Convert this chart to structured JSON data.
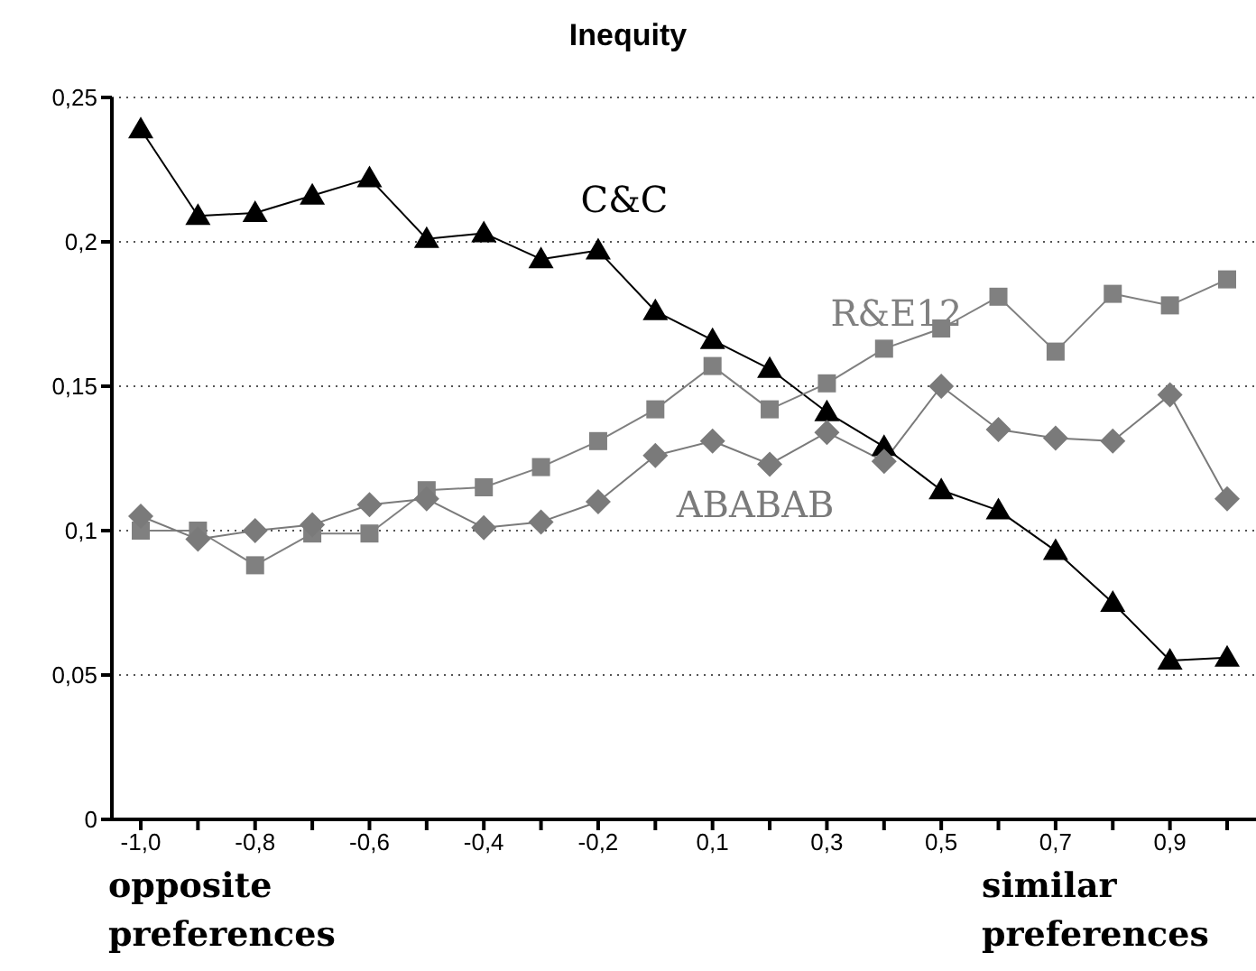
{
  "chart_data": {
    "type": "line",
    "title": "Inequity",
    "categories": [
      "-1,0",
      null,
      "-0,8",
      null,
      "-0,6",
      null,
      "-0,4",
      null,
      "-0,2",
      null,
      "0,1",
      null,
      "0,3",
      null,
      "0,5",
      null,
      "0,7",
      null,
      "0,9",
      null
    ],
    "series": [
      {
        "name": "C&C",
        "color": "#000000",
        "marker": "triangle",
        "values": [
          0.239,
          0.209,
          0.21,
          0.216,
          0.222,
          0.201,
          0.203,
          0.194,
          0.197,
          0.176,
          0.166,
          0.156,
          0.141,
          0.129,
          0.114,
          0.107,
          0.093,
          0.075,
          0.055,
          0.056
        ]
      },
      {
        "name": "R&E12",
        "color": "#808080",
        "marker": "square",
        "values": [
          0.1,
          0.1,
          0.088,
          0.099,
          0.099,
          0.114,
          0.115,
          0.122,
          0.131,
          0.142,
          0.157,
          0.142,
          0.151,
          0.163,
          0.17,
          0.181,
          0.162,
          0.182,
          0.178,
          0.187
        ]
      },
      {
        "name": "ABABAB",
        "color": "#7a7a7a",
        "marker": "diamond",
        "values": [
          0.105,
          0.097,
          0.1,
          0.102,
          0.109,
          0.111,
          0.101,
          0.103,
          0.11,
          0.126,
          0.131,
          0.123,
          0.134,
          0.124,
          0.15,
          0.135,
          0.132,
          0.131,
          0.147,
          0.111
        ]
      }
    ],
    "ylim": [
      0,
      0.25
    ],
    "yticks": [
      {
        "value": 0,
        "label": "0"
      },
      {
        "value": 0.05,
        "label": "0,05"
      },
      {
        "value": 0.1,
        "label": "0,1"
      },
      {
        "value": 0.15,
        "label": "0,15"
      },
      {
        "value": 0.2,
        "label": "0,2"
      },
      {
        "value": 0.25,
        "label": "0,25"
      }
    ],
    "grid": "y",
    "legend": false,
    "line_style": "solid",
    "annotations": [
      "opposite preferences",
      "similar preferences"
    ]
  }
}
